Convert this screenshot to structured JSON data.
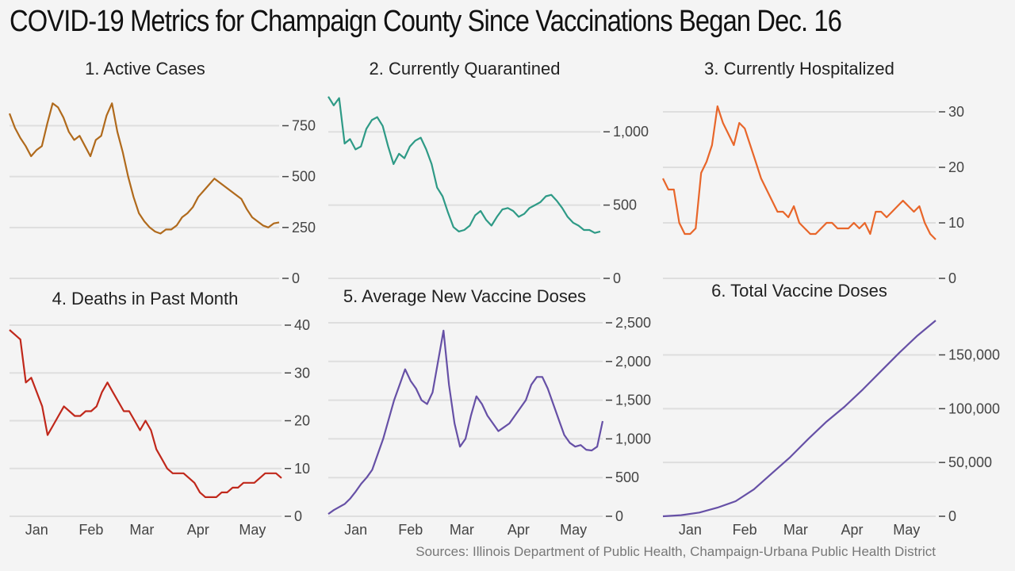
{
  "title": "COVID-19 Metrics for Champaign County Since Vaccinations Began Dec. 16",
  "source": "Sources: Illinois Department of Public Health, Champaign-Urbana Public Health District",
  "colors": {
    "orange_brown": "#b06a1c",
    "teal": "#2e9a86",
    "orange": "#e8662a",
    "red": "#c0281b",
    "purple": "#6650a6"
  },
  "chart_data": [
    {
      "type": "line",
      "title": "1. Active Cases",
      "color": "#b06a1c",
      "x_range": [
        0,
        150
      ],
      "ylim": [
        0,
        900
      ],
      "yticks": [
        0,
        250,
        500,
        750
      ],
      "ytick_labels": [
        "0",
        "250",
        "500",
        "750"
      ],
      "xticks": [],
      "x": [
        0,
        3,
        6,
        9,
        12,
        15,
        18,
        21,
        24,
        27,
        30,
        33,
        36,
        39,
        42,
        45,
        48,
        51,
        54,
        57,
        60,
        63,
        66,
        69,
        72,
        75,
        78,
        81,
        84,
        87,
        90,
        93,
        96,
        99,
        102,
        105,
        108,
        111,
        114,
        117,
        120,
        123,
        126,
        129,
        132,
        135,
        138,
        141,
        144,
        147,
        150
      ],
      "values": [
        810,
        740,
        690,
        650,
        600,
        630,
        650,
        760,
        860,
        840,
        790,
        720,
        680,
        700,
        650,
        600,
        680,
        700,
        800,
        860,
        720,
        620,
        500,
        400,
        320,
        280,
        250,
        230,
        220,
        240,
        240,
        260,
        300,
        320,
        350,
        400,
        430,
        460,
        490,
        470,
        450,
        430,
        410,
        390,
        340,
        300,
        280,
        260,
        250,
        270,
        275
      ]
    },
    {
      "type": "line",
      "title": "2. Currently Quarantined",
      "color": "#2e9a86",
      "x_range": [
        0,
        150
      ],
      "ylim": [
        0,
        1250
      ],
      "yticks": [
        0,
        500,
        1000
      ],
      "ytick_labels": [
        "0",
        "500",
        "1,000"
      ],
      "xticks": [],
      "x": [
        0,
        3,
        6,
        9,
        12,
        15,
        18,
        21,
        24,
        27,
        30,
        33,
        36,
        39,
        42,
        45,
        48,
        51,
        54,
        57,
        60,
        63,
        66,
        69,
        72,
        75,
        78,
        81,
        84,
        87,
        90,
        93,
        96,
        99,
        102,
        105,
        108,
        111,
        114,
        117,
        120,
        123,
        126,
        129,
        132,
        135,
        138,
        141,
        144,
        147,
        150
      ],
      "values": [
        1240,
        1180,
        1230,
        920,
        950,
        880,
        900,
        1020,
        1080,
        1100,
        1040,
        900,
        780,
        850,
        820,
        900,
        940,
        960,
        880,
        780,
        620,
        560,
        450,
        350,
        320,
        330,
        360,
        430,
        460,
        400,
        360,
        420,
        470,
        480,
        460,
        420,
        440,
        480,
        500,
        520,
        560,
        570,
        530,
        480,
        420,
        380,
        360,
        330,
        330,
        310,
        320
      ]
    },
    {
      "type": "line",
      "title": "3. Currently Hospitalized",
      "color": "#e8662a",
      "x_range": [
        0,
        150
      ],
      "ylim": [
        0,
        33
      ],
      "yticks": [
        0,
        10,
        20,
        30
      ],
      "ytick_labels": [
        "0",
        "10",
        "20",
        "30"
      ],
      "xticks": [],
      "x": [
        0,
        3,
        6,
        9,
        12,
        15,
        18,
        21,
        24,
        27,
        30,
        33,
        36,
        39,
        42,
        45,
        48,
        51,
        54,
        57,
        60,
        63,
        66,
        69,
        72,
        75,
        78,
        81,
        84,
        87,
        90,
        93,
        96,
        99,
        102,
        105,
        108,
        111,
        114,
        117,
        120,
        123,
        126,
        129,
        132,
        135,
        138,
        141,
        144,
        147,
        150
      ],
      "values": [
        18,
        16,
        16,
        10,
        8,
        8,
        9,
        19,
        21,
        24,
        31,
        28,
        26,
        24,
        28,
        27,
        24,
        21,
        18,
        16,
        14,
        12,
        12,
        11,
        13,
        10,
        9,
        8,
        8,
        9,
        10,
        10,
        9,
        9,
        9,
        10,
        9,
        10,
        8,
        12,
        12,
        11,
        12,
        13,
        14,
        13,
        12,
        13,
        10,
        8,
        7
      ]
    },
    {
      "type": "line",
      "title": "4. Deaths in Past Month",
      "color": "#c0281b",
      "x_range": [
        0,
        150
      ],
      "ylim": [
        0,
        40
      ],
      "yticks": [
        0,
        10,
        20,
        30,
        40
      ],
      "ytick_labels": [
        "0",
        "10",
        "20",
        "30",
        "40"
      ],
      "xticks": [
        15,
        45,
        73,
        104,
        134
      ],
      "xtick_labels": [
        "Jan",
        "Feb",
        "Mar",
        "Apr",
        "May"
      ],
      "x": [
        0,
        3,
        6,
        9,
        12,
        15,
        18,
        21,
        24,
        27,
        30,
        33,
        36,
        39,
        42,
        45,
        48,
        51,
        54,
        57,
        60,
        63,
        66,
        69,
        72,
        75,
        78,
        81,
        84,
        87,
        90,
        93,
        96,
        99,
        102,
        105,
        108,
        111,
        114,
        117,
        120,
        123,
        126,
        129,
        132,
        135,
        138,
        141,
        144,
        147,
        150
      ],
      "values": [
        39,
        38,
        37,
        28,
        29,
        26,
        23,
        17,
        19,
        21,
        23,
        22,
        21,
        21,
        22,
        22,
        23,
        26,
        28,
        26,
        24,
        22,
        22,
        20,
        18,
        20,
        18,
        14,
        12,
        10,
        9,
        9,
        9,
        8,
        7,
        5,
        4,
        4,
        4,
        5,
        5,
        6,
        6,
        7,
        7,
        7,
        8,
        9,
        9,
        9,
        8
      ]
    },
    {
      "type": "line",
      "title": "5. Average New Vaccine Doses",
      "color": "#6650a6",
      "x_range": [
        0,
        150
      ],
      "ylim": [
        0,
        2500
      ],
      "yticks": [
        0,
        500,
        1000,
        1500,
        2000,
        2500
      ],
      "ytick_labels": [
        "0",
        "500",
        "1,000",
        "1,500",
        "2,000",
        "2,500"
      ],
      "xticks": [
        15,
        45,
        73,
        104,
        134
      ],
      "xtick_labels": [
        "Jan",
        "Feb",
        "Mar",
        "Apr",
        "May"
      ],
      "x": [
        0,
        3,
        6,
        9,
        12,
        15,
        18,
        21,
        24,
        27,
        30,
        33,
        36,
        39,
        42,
        45,
        48,
        51,
        54,
        57,
        60,
        63,
        66,
        69,
        72,
        75,
        78,
        81,
        84,
        87,
        90,
        93,
        96,
        99,
        102,
        105,
        108,
        111,
        114,
        117,
        120,
        123,
        126,
        129,
        132,
        135,
        138,
        141,
        144,
        147,
        150
      ],
      "values": [
        30,
        80,
        120,
        160,
        230,
        320,
        420,
        500,
        600,
        800,
        1000,
        1250,
        1500,
        1700,
        1900,
        1750,
        1650,
        1500,
        1450,
        1600,
        2000,
        2400,
        1700,
        1200,
        900,
        1000,
        1300,
        1550,
        1450,
        1300,
        1200,
        1100,
        1150,
        1200,
        1300,
        1400,
        1500,
        1700,
        1800,
        1800,
        1650,
        1450,
        1250,
        1050,
        950,
        900,
        920,
        860,
        850,
        900,
        1230
      ]
    },
    {
      "type": "line",
      "title": "6. Total Vaccine Doses",
      "color": "#6650a6",
      "x_range": [
        0,
        150
      ],
      "ylim": [
        0,
        185000
      ],
      "yticks": [
        0,
        50000,
        100000,
        150000
      ],
      "ytick_labels": [
        "0",
        "50,000",
        "100,000",
        "150,000"
      ],
      "xticks": [
        15,
        45,
        73,
        104,
        134
      ],
      "xtick_labels": [
        "Jan",
        "Feb",
        "Mar",
        "Apr",
        "May"
      ],
      "x": [
        0,
        10,
        20,
        30,
        40,
        50,
        60,
        70,
        80,
        90,
        100,
        110,
        120,
        130,
        140,
        150
      ],
      "values": [
        0,
        1000,
        3500,
        8000,
        14000,
        25000,
        40000,
        55000,
        72000,
        88000,
        102000,
        118000,
        135000,
        152000,
        168000,
        182000
      ]
    }
  ]
}
